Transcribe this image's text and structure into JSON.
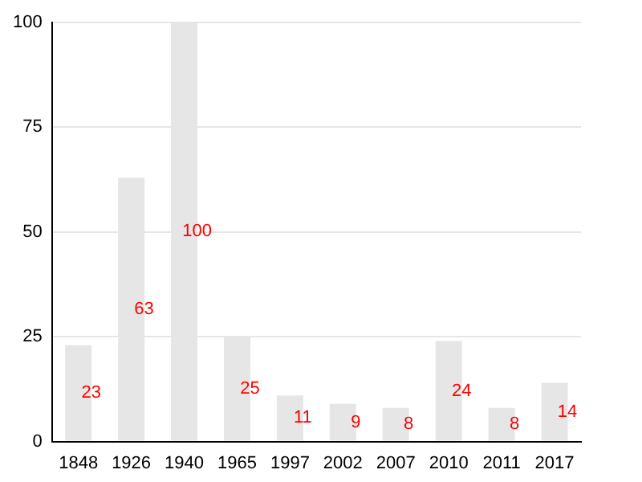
{
  "chart_data": {
    "type": "bar",
    "categories": [
      "1848",
      "1926",
      "1940",
      "1965",
      "1997",
      "2002",
      "2007",
      "2010",
      "2011",
      "2017"
    ],
    "values": [
      23,
      63,
      100,
      25,
      11,
      9,
      8,
      24,
      8,
      14
    ],
    "color": "#e6e6e6",
    "ylim": [
      0,
      100
    ],
    "yticks": [
      0,
      25,
      50,
      75,
      100
    ],
    "grid": "y",
    "data_labels": true
  }
}
